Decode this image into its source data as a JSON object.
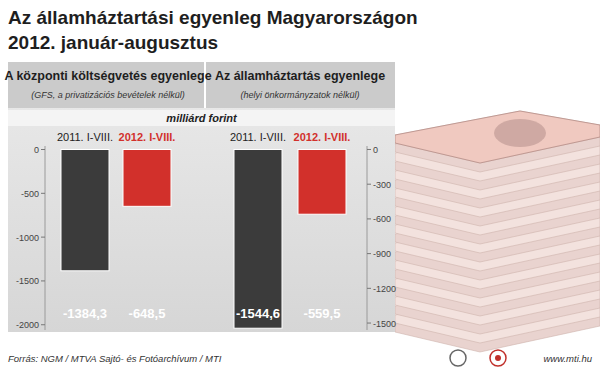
{
  "header": {
    "title": "Az államháztartási egyenleg Magyarországon",
    "subtitle": "2012. január-augusztus",
    "unit": "milliárd forint"
  },
  "chart_data": [
    {
      "type": "bar",
      "title": "A központi költségvetés egyenlege",
      "subtitle": "(GFS, a privatizációs bevételek nélkül)",
      "categories": [
        "2011. I-VIII.",
        "2012. I-VIII."
      ],
      "values": [
        -1384.3,
        -648.5
      ],
      "value_labels": [
        "-1384,3",
        "-648,5"
      ],
      "colors": [
        "#3b3b3b",
        "#d2302b"
      ],
      "ylim": [
        -2060,
        40
      ],
      "yticks": [
        0,
        -500,
        -1000,
        -1500,
        -2000
      ],
      "grid": false,
      "data_labels": true
    },
    {
      "type": "bar",
      "title": "Az államháztartás egyenlege",
      "subtitle": "(helyi önkormányzatok nélkül)",
      "categories": [
        "2011. I-VIII.",
        "2012. I-VIII."
      ],
      "values": [
        -1544.6,
        -559.5
      ],
      "value_labels": [
        "-1544,6",
        "-559,5"
      ],
      "colors": [
        "#3b3b3b",
        "#d2302b"
      ],
      "ylim": [
        -1560,
        30
      ],
      "yticks": [
        0,
        -300,
        -600,
        -900,
        -1200,
        -1500
      ],
      "grid": false,
      "data_labels": true
    }
  ],
  "footer": {
    "source": "Forrás: NGM / MTVA Sajtó- és Fotóarchívum / MTI",
    "website": "www.mti.hu"
  }
}
